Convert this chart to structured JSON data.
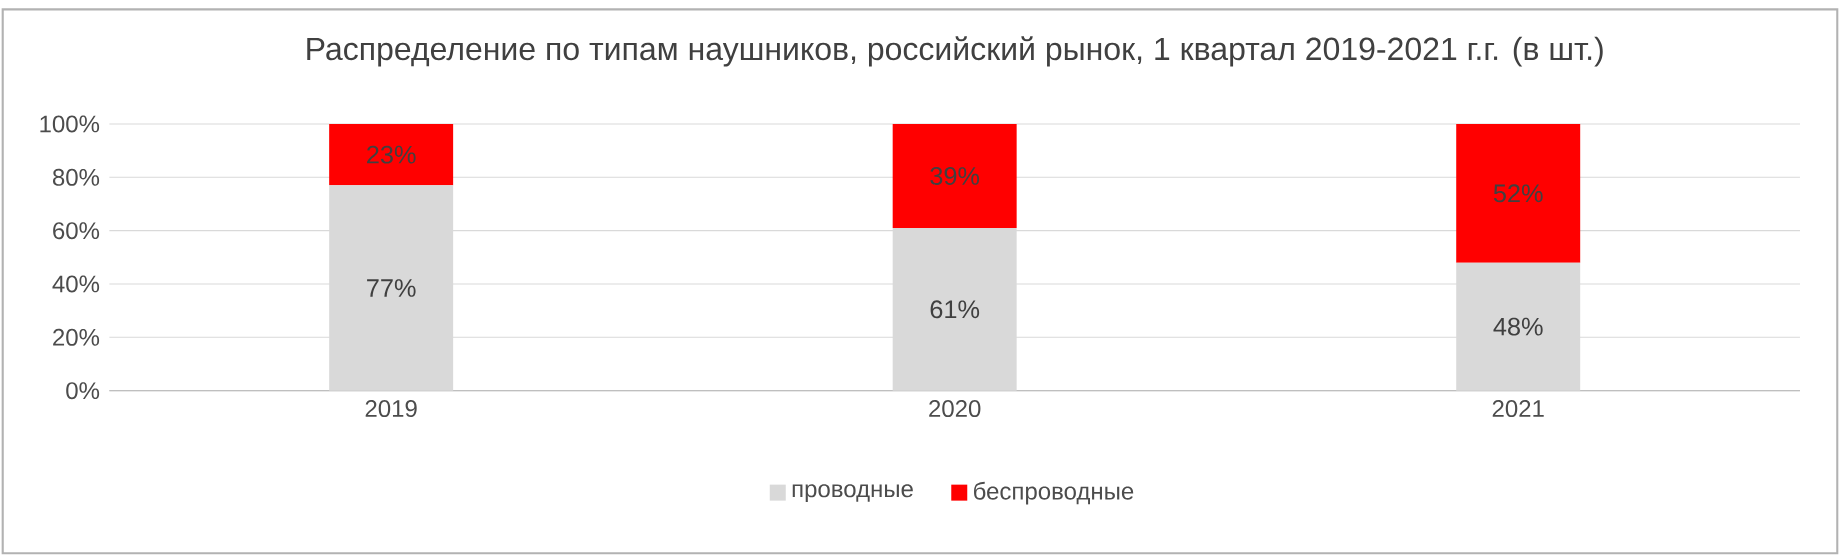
{
  "chart_data": {
    "type": "bar",
    "stacked": true,
    "title": "Распределение по типам наушников, российский рынок, 1 квартал 2019-2021 г.г. (в шт.)",
    "categories": [
      "2019",
      "2020",
      "2021"
    ],
    "series": [
      {
        "name": "проводные",
        "color": "#d9d9d9",
        "values": [
          77,
          61,
          48
        ],
        "value_labels": [
          "77%",
          "61%",
          "48%"
        ]
      },
      {
        "name": "беспроводные",
        "color": "#ff0000",
        "values": [
          23,
          39,
          52
        ],
        "value_labels": [
          "23%",
          "39%",
          "52%"
        ]
      }
    ],
    "ylim": [
      0,
      100
    ],
    "yticks": [
      {
        "value": 0,
        "label": "0%"
      },
      {
        "value": 20,
        "label": "20%"
      },
      {
        "value": 40,
        "label": "40%"
      },
      {
        "value": 60,
        "label": "60%"
      },
      {
        "value": 80,
        "label": "80%"
      },
      {
        "value": 100,
        "label": "100%"
      }
    ],
    "grid": "y",
    "legend": "bottom"
  }
}
